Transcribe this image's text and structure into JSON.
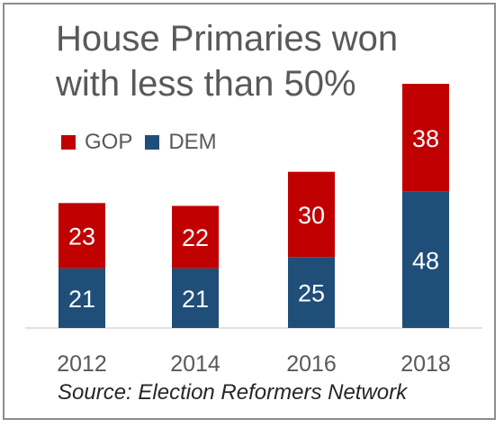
{
  "chart_data": {
    "type": "bar",
    "stacked": true,
    "title": "House Primaries won with less than 50%",
    "categories": [
      "2012",
      "2014",
      "2016",
      "2018"
    ],
    "series": [
      {
        "name": "DEM",
        "values": [
          21,
          21,
          25,
          48
        ],
        "color": "#1f4e79"
      },
      {
        "name": "GOP",
        "values": [
          23,
          22,
          30,
          38
        ],
        "color": "#c00000"
      }
    ],
    "legend_position": "top-left",
    "grid": false,
    "ylim": [
      0,
      86
    ],
    "source": "Source: Election Reformers Network"
  },
  "legend": {
    "gop": "GOP",
    "dem": "DEM"
  }
}
